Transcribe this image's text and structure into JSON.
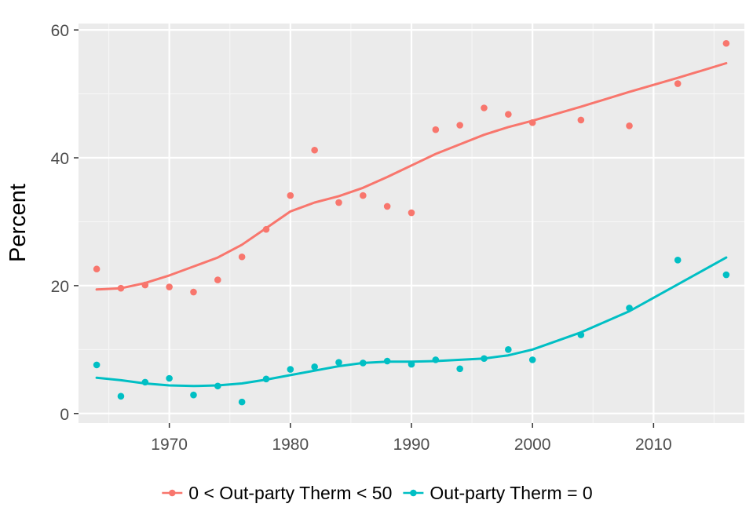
{
  "chart_data": {
    "type": "scatter",
    "title": "",
    "xlabel": "",
    "ylabel": "Percent",
    "xlim": [
      1962.5,
      2017.5
    ],
    "ylim": [
      -1.5,
      61
    ],
    "xticks": [
      1970,
      1980,
      1990,
      2000,
      2010
    ],
    "yticks": [
      0,
      20,
      40,
      60
    ],
    "grid": true,
    "legend_position": "bottom",
    "series": [
      {
        "name": "0 < Out-party Therm < 50",
        "color": "#F8766D",
        "points": [
          {
            "x": 1964,
            "y": 22.6
          },
          {
            "x": 1966,
            "y": 19.6
          },
          {
            "x": 1968,
            "y": 20.1
          },
          {
            "x": 1970,
            "y": 19.8
          },
          {
            "x": 1972,
            "y": 19.0
          },
          {
            "x": 1974,
            "y": 20.9
          },
          {
            "x": 1976,
            "y": 24.5
          },
          {
            "x": 1978,
            "y": 28.8
          },
          {
            "x": 1980,
            "y": 34.1
          },
          {
            "x": 1982,
            "y": 41.2
          },
          {
            "x": 1984,
            "y": 33.0
          },
          {
            "x": 1986,
            "y": 34.1
          },
          {
            "x": 1988,
            "y": 32.4
          },
          {
            "x": 1990,
            "y": 31.4
          },
          {
            "x": 1992,
            "y": 44.4
          },
          {
            "x": 1994,
            "y": 45.1
          },
          {
            "x": 1996,
            "y": 47.8
          },
          {
            "x": 1998,
            "y": 46.8
          },
          {
            "x": 2000,
            "y": 45.5
          },
          {
            "x": 2004,
            "y": 45.9
          },
          {
            "x": 2008,
            "y": 45.0
          },
          {
            "x": 2012,
            "y": 51.6
          },
          {
            "x": 2016,
            "y": 57.9
          }
        ],
        "trend": [
          {
            "x": 1964,
            "y": 19.4
          },
          {
            "x": 1966,
            "y": 19.6
          },
          {
            "x": 1968,
            "y": 20.4
          },
          {
            "x": 1970,
            "y": 21.6
          },
          {
            "x": 1972,
            "y": 23.0
          },
          {
            "x": 1974,
            "y": 24.4
          },
          {
            "x": 1976,
            "y": 26.4
          },
          {
            "x": 1978,
            "y": 29.0
          },
          {
            "x": 1980,
            "y": 31.6
          },
          {
            "x": 1982,
            "y": 33.0
          },
          {
            "x": 1984,
            "y": 34.0
          },
          {
            "x": 1986,
            "y": 35.3
          },
          {
            "x": 1988,
            "y": 37.0
          },
          {
            "x": 1990,
            "y": 38.8
          },
          {
            "x": 1992,
            "y": 40.6
          },
          {
            "x": 1994,
            "y": 42.1
          },
          {
            "x": 1996,
            "y": 43.6
          },
          {
            "x": 1998,
            "y": 44.8
          },
          {
            "x": 2000,
            "y": 45.8
          },
          {
            "x": 2004,
            "y": 48.0
          },
          {
            "x": 2008,
            "y": 50.3
          },
          {
            "x": 2012,
            "y": 52.5
          },
          {
            "x": 2016,
            "y": 54.8
          }
        ]
      },
      {
        "name": "Out-party Therm = 0",
        "color": "#00BFC4",
        "points": [
          {
            "x": 1964,
            "y": 7.6
          },
          {
            "x": 1966,
            "y": 2.7
          },
          {
            "x": 1968,
            "y": 4.9
          },
          {
            "x": 1970,
            "y": 5.5
          },
          {
            "x": 1972,
            "y": 2.9
          },
          {
            "x": 1974,
            "y": 4.3
          },
          {
            "x": 1976,
            "y": 1.8
          },
          {
            "x": 1978,
            "y": 5.4
          },
          {
            "x": 1980,
            "y": 6.9
          },
          {
            "x": 1982,
            "y": 7.3
          },
          {
            "x": 1984,
            "y": 8.0
          },
          {
            "x": 1986,
            "y": 7.9
          },
          {
            "x": 1988,
            "y": 8.2
          },
          {
            "x": 1990,
            "y": 7.7
          },
          {
            "x": 1992,
            "y": 8.4
          },
          {
            "x": 1994,
            "y": 7.0
          },
          {
            "x": 1996,
            "y": 8.6
          },
          {
            "x": 1998,
            "y": 10.0
          },
          {
            "x": 2000,
            "y": 8.4
          },
          {
            "x": 2004,
            "y": 12.3
          },
          {
            "x": 2008,
            "y": 16.5
          },
          {
            "x": 2012,
            "y": 24.0
          },
          {
            "x": 2016,
            "y": 21.7
          }
        ],
        "trend": [
          {
            "x": 1964,
            "y": 5.6
          },
          {
            "x": 1966,
            "y": 5.2
          },
          {
            "x": 1968,
            "y": 4.7
          },
          {
            "x": 1970,
            "y": 4.4
          },
          {
            "x": 1972,
            "y": 4.3
          },
          {
            "x": 1974,
            "y": 4.4
          },
          {
            "x": 1976,
            "y": 4.7
          },
          {
            "x": 1978,
            "y": 5.3
          },
          {
            "x": 1980,
            "y": 6.0
          },
          {
            "x": 1982,
            "y": 6.7
          },
          {
            "x": 1984,
            "y": 7.4
          },
          {
            "x": 1986,
            "y": 7.9
          },
          {
            "x": 1988,
            "y": 8.1
          },
          {
            "x": 1990,
            "y": 8.1
          },
          {
            "x": 1992,
            "y": 8.2
          },
          {
            "x": 1994,
            "y": 8.4
          },
          {
            "x": 1996,
            "y": 8.6
          },
          {
            "x": 1998,
            "y": 9.1
          },
          {
            "x": 2000,
            "y": 10.0
          },
          {
            "x": 2004,
            "y": 12.7
          },
          {
            "x": 2008,
            "y": 16.0
          },
          {
            "x": 2012,
            "y": 20.2
          },
          {
            "x": 2016,
            "y": 24.4
          }
        ]
      }
    ]
  }
}
